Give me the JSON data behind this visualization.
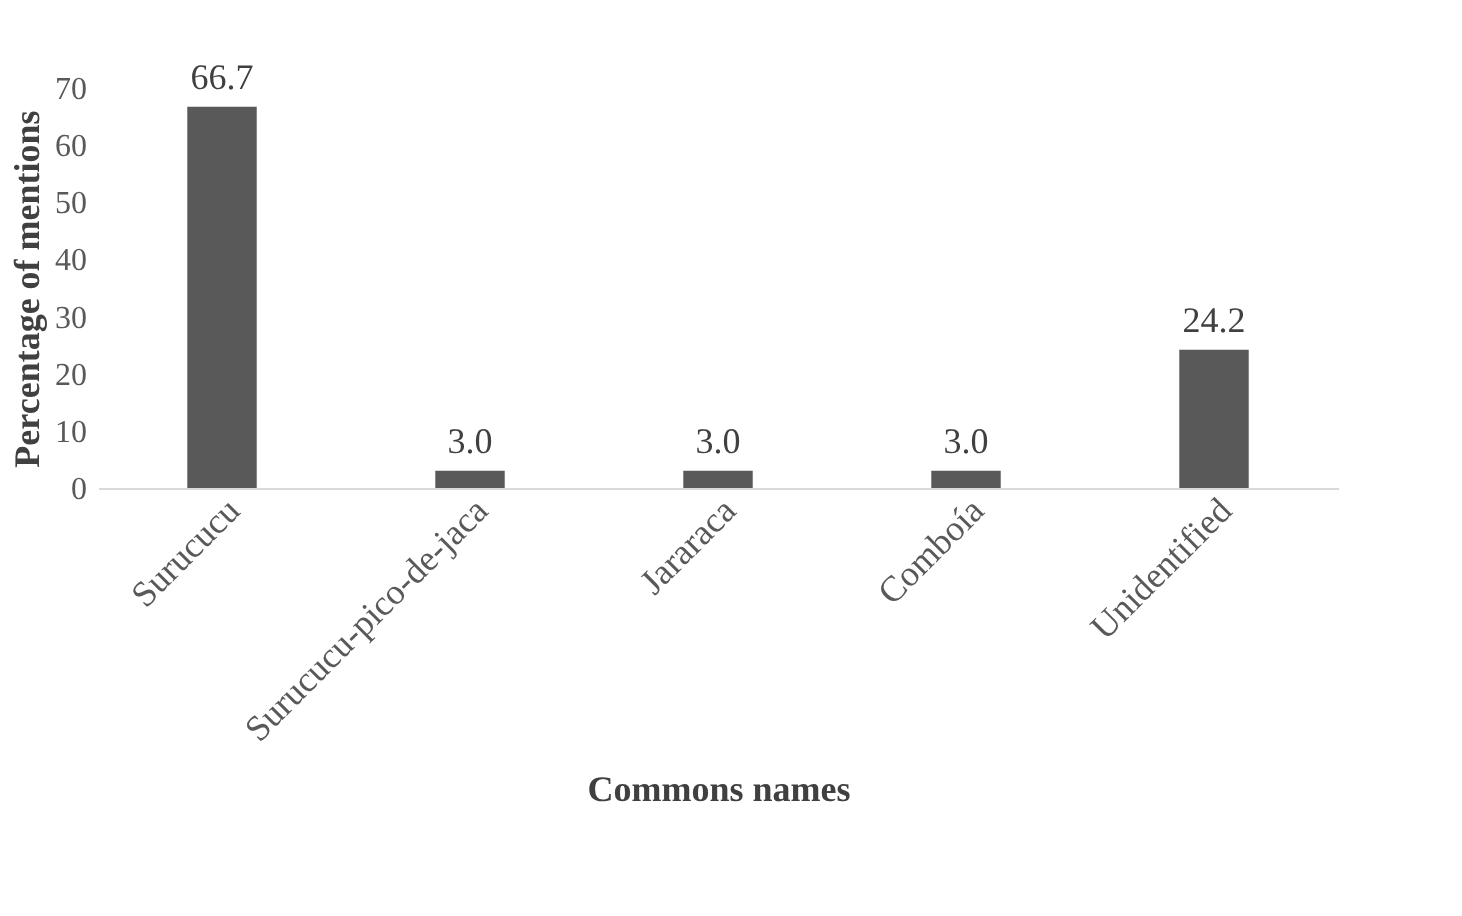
{
  "chart_data": {
    "type": "bar",
    "xlabel": "Commons names",
    "ylabel": "Percentage of mentions",
    "categories": [
      "Surucucu",
      "Surucucu-pico-de-jaca",
      "Jararaca",
      "Comboía",
      "Unidentified"
    ],
    "values": [
      66.7,
      3.0,
      3.0,
      3.0,
      24.2
    ],
    "value_labels": [
      "66.7",
      "3.0",
      "3.0",
      "3.0",
      "24.2"
    ],
    "color": "#595959",
    "ylim": [
      0,
      70
    ],
    "yticks": [
      0,
      10,
      20,
      30,
      40,
      50,
      60,
      70
    ],
    "grid": false
  }
}
